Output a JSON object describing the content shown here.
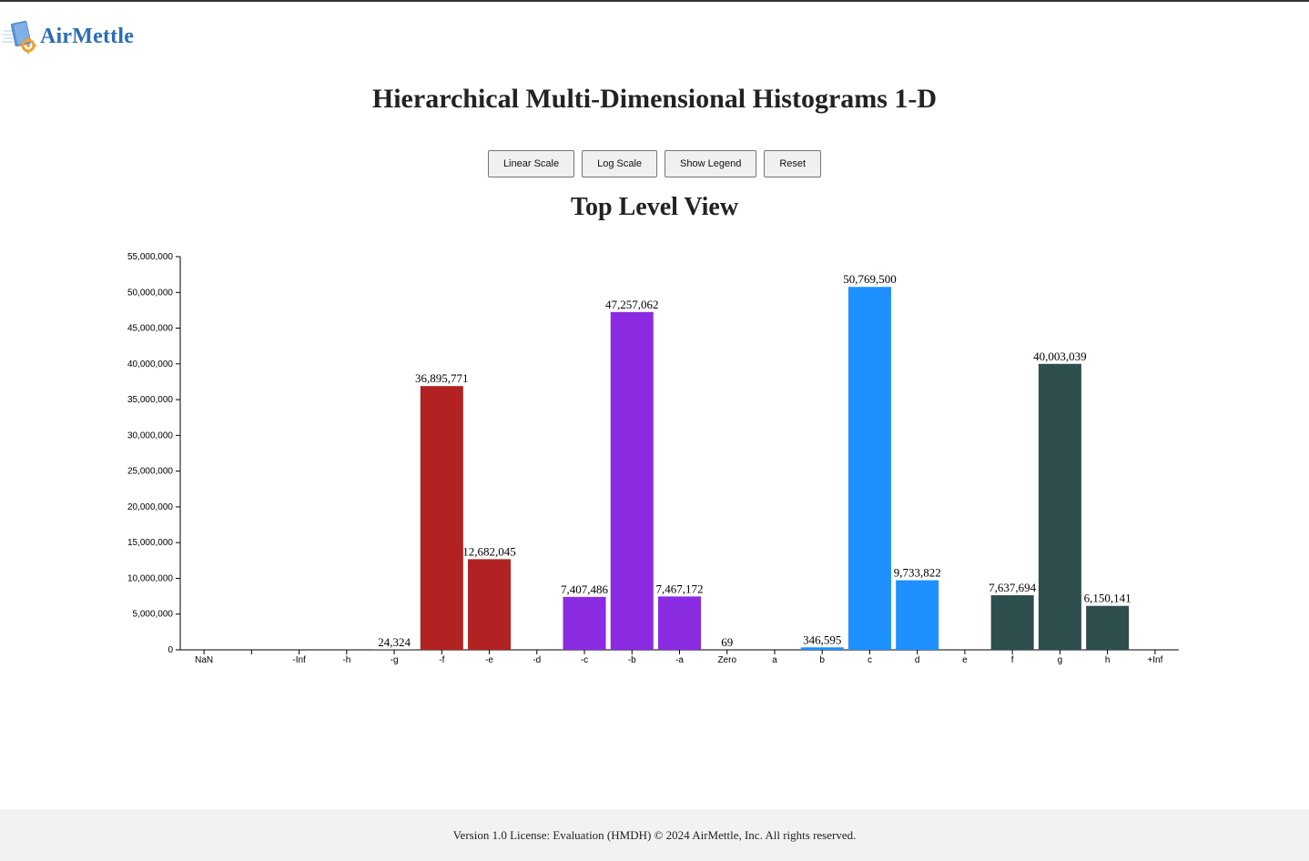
{
  "brand": {
    "name": "AirMettle",
    "logo_icon": "database-gear-icon"
  },
  "page_title": "Hierarchical Multi-Dimensional Histograms 1-D",
  "buttons": {
    "linear": "Linear Scale",
    "log": "Log Scale",
    "legend": "Show Legend",
    "reset": "Reset"
  },
  "view_title": "Top Level View",
  "footer": "Version 1.0 License: Evaluation (HMDH) © 2024 AirMettle, Inc. All rights reserved.",
  "chart_data": {
    "type": "bar",
    "title": "Top Level View",
    "xlabel": "",
    "ylabel": "",
    "ylim": [
      0,
      55000000
    ],
    "yticks": [
      0,
      5000000,
      10000000,
      15000000,
      20000000,
      25000000,
      30000000,
      35000000,
      40000000,
      45000000,
      50000000,
      55000000
    ],
    "ytick_labels": [
      "0",
      "5,000,000",
      "10,000,000",
      "15,000,000",
      "20,000,000",
      "25,000,000",
      "30,000,000",
      "35,000,000",
      "40,000,000",
      "45,000,000",
      "50,000,000",
      "55,000,000"
    ],
    "grid": false,
    "categories": [
      "NaN",
      "",
      "-Inf",
      "-h",
      "-g",
      "-f",
      "-e",
      "-d",
      "-c",
      "-b",
      "-a",
      "Zero",
      "a",
      "b",
      "c",
      "d",
      "e",
      "f",
      "g",
      "h",
      "+Inf"
    ],
    "values": [
      null,
      null,
      null,
      null,
      24324,
      36895771,
      12682045,
      null,
      7407486,
      47257062,
      7467172,
      69,
      null,
      346595,
      50769500,
      9733822,
      null,
      7637694,
      40003039,
      6150141,
      null
    ],
    "value_labels": [
      "",
      "",
      "",
      "",
      "24,324",
      "36,895,771",
      "12,682,045",
      "",
      "7,407,486",
      "47,257,062",
      "7,467,172",
      "69",
      "",
      "346,595",
      "50,769,500",
      "9,733,822",
      "",
      "7,637,694",
      "40,003,039",
      "6,150,141",
      ""
    ],
    "colors": [
      "#b22222",
      "#b22222",
      "#b22222",
      "#b22222",
      "#b22222",
      "#b22222",
      "#b22222",
      "#8a2be2",
      "#8a2be2",
      "#8a2be2",
      "#8a2be2",
      "#8a2be2",
      "#1e90ff",
      "#1e90ff",
      "#1e90ff",
      "#1e90ff",
      "#2f4f4f",
      "#2f4f4f",
      "#2f4f4f",
      "#2f4f4f",
      "#2f4f4f"
    ]
  }
}
